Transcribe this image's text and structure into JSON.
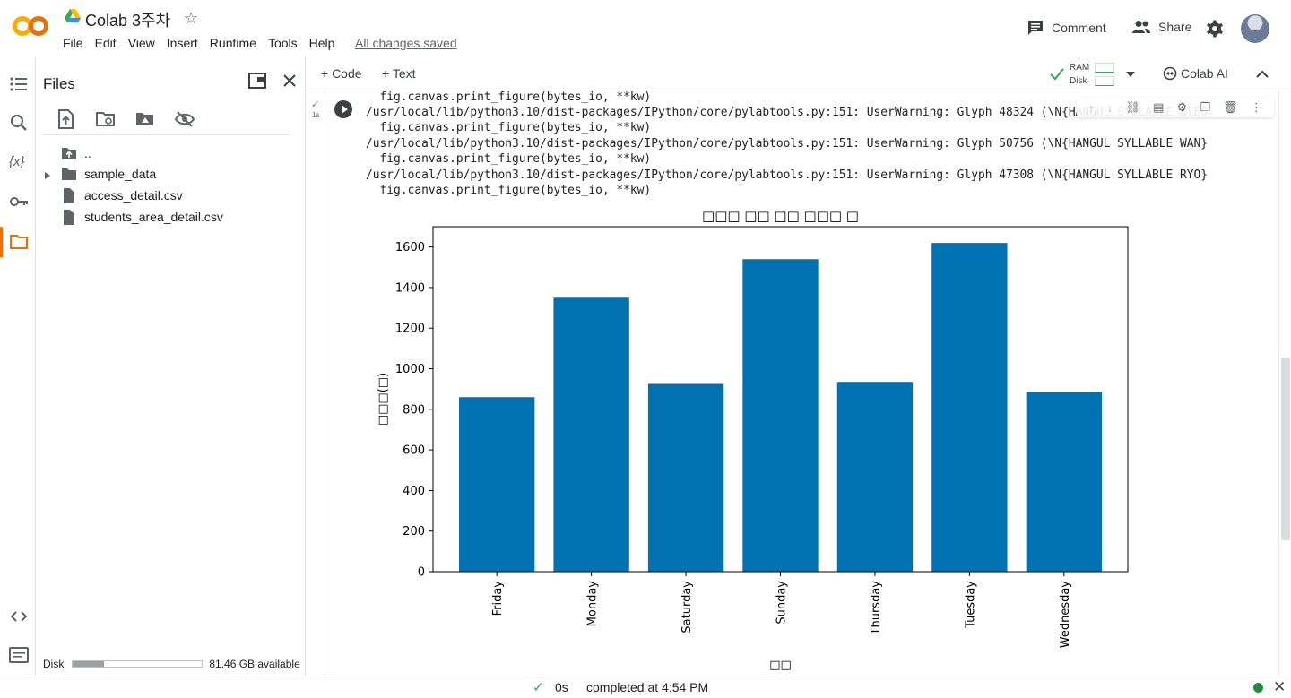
{
  "header": {
    "title": "Colab 3주차",
    "menu": [
      "File",
      "Edit",
      "View",
      "Insert",
      "Runtime",
      "Tools",
      "Help"
    ],
    "saved_status": "All changes saved",
    "comment_label": "Comment",
    "share_label": "Share"
  },
  "files_panel": {
    "title": "Files",
    "items": [
      "..",
      "sample_data",
      "access_detail.csv",
      "students_area_detail.csv"
    ],
    "disk_label": "Disk",
    "disk_available": "81.46 GB available",
    "disk_used_fraction": 0.24
  },
  "toolbar": {
    "code_label": "+ Code",
    "text_label": "+ Text",
    "ram_label": "RAM",
    "disk_label": "Disk",
    "colab_ai_label": "Colab AI"
  },
  "cell": {
    "exec_time": "1s",
    "output_lines": [
      "  fig.canvas.print_figure(bytes_io, **kw)",
      "/usr/local/lib/python3.10/dist-packages/IPython/core/pylabtools.py:151: UserWarning: Glyph 48324 (\\N{HANGUL SYLLABLE BYEO",
      "  fig.canvas.print_figure(bytes_io, **kw)",
      "/usr/local/lib/python3.10/dist-packages/IPython/core/pylabtools.py:151: UserWarning: Glyph 50756 (\\N{HANGUL SYLLABLE WAN}",
      "  fig.canvas.print_figure(bytes_io, **kw)",
      "/usr/local/lib/python3.10/dist-packages/IPython/core/pylabtools.py:151: UserWarning: Glyph 47308 (\\N{HANGUL SYLLABLE RYO}",
      "  fig.canvas.print_figure(bytes_io, **kw)"
    ]
  },
  "chart_data": {
    "type": "bar",
    "title": "□□□ □□ □□ □□□ □",
    "xlabel": "□□",
    "ylabel": "□□□(□)",
    "categories": [
      "Friday",
      "Monday",
      "Saturday",
      "Sunday",
      "Thursday",
      "Tuesday",
      "Wednesday"
    ],
    "values": [
      860,
      1350,
      925,
      1540,
      935,
      1620,
      885
    ],
    "ylim": [
      0,
      1700
    ],
    "yticks": [
      0,
      200,
      400,
      600,
      800,
      1000,
      1200,
      1400,
      1600
    ],
    "bar_color": "#0072b2",
    "grid": false
  },
  "status": {
    "duration": "0s",
    "completed": "completed at 4:54 PM"
  },
  "colors": {
    "accent": "#e8710a",
    "ok": "#34a853"
  }
}
